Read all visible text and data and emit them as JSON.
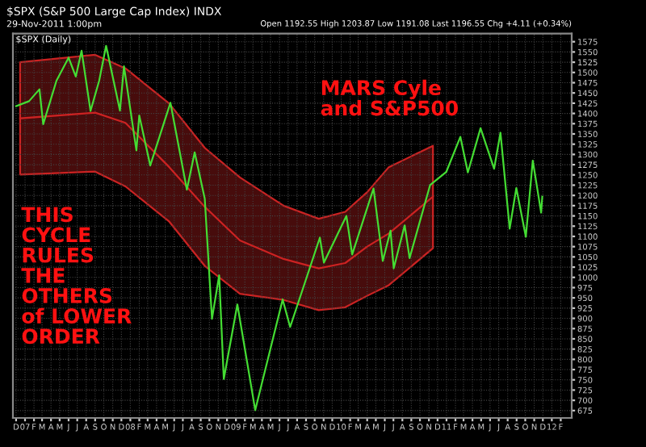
{
  "chart_data": {
    "type": "line",
    "title": "$SPX (S&P 500 Large Cap Index) INDX",
    "subtitle": "29-Nov-2011 1:00pm",
    "annotations": [
      "$SPX (Daily)",
      "Open 1192.55 High 1203.87 Low 1191.08 Last 1196.55 Chg +4.11 (+0.34%)",
      "MARS Cyle\nand S&P500",
      "THIS\nCYCLE\nRULES\nTHE\nOTHERS\nof LOWER\nORDER"
    ],
    "series": [
      {
        "color": "#cc2222",
        "x": [
          "2006-12-15",
          "2007-09-01",
          "2007-12-15",
          "2008-05-15",
          "2008-09-15",
          "2009-01-15",
          "2009-06-15",
          "2009-10-15",
          "2010-01-15",
          "2010-04-01",
          "2010-06-15",
          "2010-11-15"
        ],
        "values": [
          1388,
          1402,
          1377,
          1269,
          1172,
          1090,
          1045,
          1022,
          1035,
          1075,
          1107,
          1197
        ],
        "upper": [
          1525,
          1543,
          1510,
          1424,
          1316,
          1244,
          1175,
          1143,
          1160,
          1208,
          1269,
          1321
        ],
        "lower": [
          1251,
          1258,
          1222,
          1136,
          1028,
          960,
          945,
          920,
          927,
          955,
          981,
          1071
        ]
      },
      {
        "color": "#44dd33",
        "x": [
          "2006-12-01",
          "2007-01-15",
          "2007-02-20",
          "2007-03-05",
          "2007-04-20",
          "2007-06-01",
          "2007-06-26",
          "2007-07-16",
          "2007-08-16",
          "2007-09-15",
          "2007-10-09",
          "2007-11-26",
          "2007-12-10",
          "2008-01-22",
          "2008-02-01",
          "2008-03-10",
          "2008-05-19",
          "2008-07-15",
          "2008-08-11",
          "2008-09-15",
          "2008-10-10",
          "2008-11-04",
          "2008-11-20",
          "2009-01-06",
          "2009-03-09",
          "2009-06-12",
          "2009-07-08",
          "2009-10-19",
          "2009-11-02",
          "2010-01-19",
          "2010-02-08",
          "2010-04-23",
          "2010-05-25",
          "2010-06-21",
          "2010-07-02",
          "2010-08-09",
          "2010-08-26",
          "2010-11-05",
          "2010-12-31",
          "2011-02-18",
          "2011-03-16",
          "2011-04-29",
          "2011-06-15",
          "2011-07-07",
          "2011-08-08",
          "2011-08-31",
          "2011-10-03",
          "2011-10-27",
          "2011-11-25",
          "2011-11-29"
        ],
        "values": [
          1418,
          1430,
          1459,
          1374,
          1480,
          1536,
          1490,
          1553,
          1406,
          1480,
          1565,
          1407,
          1515,
          1310,
          1395,
          1273,
          1426,
          1214,
          1305,
          1192,
          899,
          1005,
          752,
          934,
          676,
          946,
          879,
          1097,
          1036,
          1150,
          1056,
          1217,
          1040,
          1114,
          1022,
          1127,
          1047,
          1225,
          1257,
          1343,
          1256,
          1364,
          1265,
          1353,
          1119,
          1218,
          1099,
          1285,
          1158,
          1197
        ]
      }
    ],
    "xlim": [
      "2006-11-20",
      "2012-03-10"
    ],
    "xticks": [
      {
        "value": "2006-12-01",
        "label": "D"
      },
      {
        "value": "2007-01-01",
        "label": "07"
      },
      {
        "value": "2007-02-01",
        "label": "F"
      },
      {
        "value": "2007-03-01",
        "label": "M"
      },
      {
        "value": "2007-04-01",
        "label": "A"
      },
      {
        "value": "2007-05-01",
        "label": "M"
      },
      {
        "value": "2007-06-01",
        "label": "J"
      },
      {
        "value": "2007-07-01",
        "label": "J"
      },
      {
        "value": "2007-08-01",
        "label": "A"
      },
      {
        "value": "2007-09-01",
        "label": "S"
      },
      {
        "value": "2007-10-01",
        "label": "O"
      },
      {
        "value": "2007-11-01",
        "label": "N"
      },
      {
        "value": "2007-12-01",
        "label": "D"
      },
      {
        "value": "2008-01-01",
        "label": "08"
      },
      {
        "value": "2008-02-01",
        "label": "F"
      },
      {
        "value": "2008-03-01",
        "label": "M"
      },
      {
        "value": "2008-04-01",
        "label": "A"
      },
      {
        "value": "2008-05-01",
        "label": "M"
      },
      {
        "value": "2008-06-01",
        "label": "J"
      },
      {
        "value": "2008-07-01",
        "label": "J"
      },
      {
        "value": "2008-08-01",
        "label": "A"
      },
      {
        "value": "2008-09-01",
        "label": "S"
      },
      {
        "value": "2008-10-01",
        "label": "O"
      },
      {
        "value": "2008-11-01",
        "label": "N"
      },
      {
        "value": "2008-12-01",
        "label": "D"
      },
      {
        "value": "2009-01-01",
        "label": "09"
      },
      {
        "value": "2009-02-01",
        "label": "F"
      },
      {
        "value": "2009-03-01",
        "label": "M"
      },
      {
        "value": "2009-04-01",
        "label": "A"
      },
      {
        "value": "2009-05-01",
        "label": "M"
      },
      {
        "value": "2009-06-01",
        "label": "J"
      },
      {
        "value": "2009-07-01",
        "label": "J"
      },
      {
        "value": "2009-08-01",
        "label": "A"
      },
      {
        "value": "2009-09-01",
        "label": "S"
      },
      {
        "value": "2009-10-01",
        "label": "O"
      },
      {
        "value": "2009-11-01",
        "label": "N"
      },
      {
        "value": "2009-12-01",
        "label": "D"
      },
      {
        "value": "2010-01-01",
        "label": "10"
      },
      {
        "value": "2010-02-01",
        "label": "F"
      },
      {
        "value": "2010-03-01",
        "label": "M"
      },
      {
        "value": "2010-04-01",
        "label": "A"
      },
      {
        "value": "2010-05-01",
        "label": "M"
      },
      {
        "value": "2010-06-01",
        "label": "J"
      },
      {
        "value": "2010-07-01",
        "label": "J"
      },
      {
        "value": "2010-08-01",
        "label": "A"
      },
      {
        "value": "2010-09-01",
        "label": "S"
      },
      {
        "value": "2010-10-01",
        "label": "O"
      },
      {
        "value": "2010-11-01",
        "label": "N"
      },
      {
        "value": "2010-12-01",
        "label": "D"
      },
      {
        "value": "2011-01-01",
        "label": "11"
      },
      {
        "value": "2011-02-01",
        "label": "F"
      },
      {
        "value": "2011-03-01",
        "label": "M"
      },
      {
        "value": "2011-04-01",
        "label": "A"
      },
      {
        "value": "2011-05-01",
        "label": "M"
      },
      {
        "value": "2011-06-01",
        "label": "J"
      },
      {
        "value": "2011-07-01",
        "label": "J"
      },
      {
        "value": "2011-08-01",
        "label": "A"
      },
      {
        "value": "2011-09-01",
        "label": "S"
      },
      {
        "value": "2011-10-01",
        "label": "O"
      },
      {
        "value": "2011-11-01",
        "label": "N"
      },
      {
        "value": "2011-12-01",
        "label": "D"
      },
      {
        "value": "2012-01-01",
        "label": "12"
      },
      {
        "value": "2012-02-01",
        "label": "F"
      }
    ],
    "ylim": [
      657,
      1595
    ],
    "yticks": [
      675,
      700,
      725,
      750,
      775,
      800,
      825,
      850,
      875,
      900,
      925,
      950,
      975,
      1000,
      1025,
      1050,
      1075,
      1100,
      1125,
      1150,
      1175,
      1200,
      1225,
      1250,
      1275,
      1300,
      1325,
      1350,
      1375,
      1400,
      1425,
      1450,
      1475,
      1500,
      1525,
      1550,
      1575
    ],
    "grid": true
  }
}
